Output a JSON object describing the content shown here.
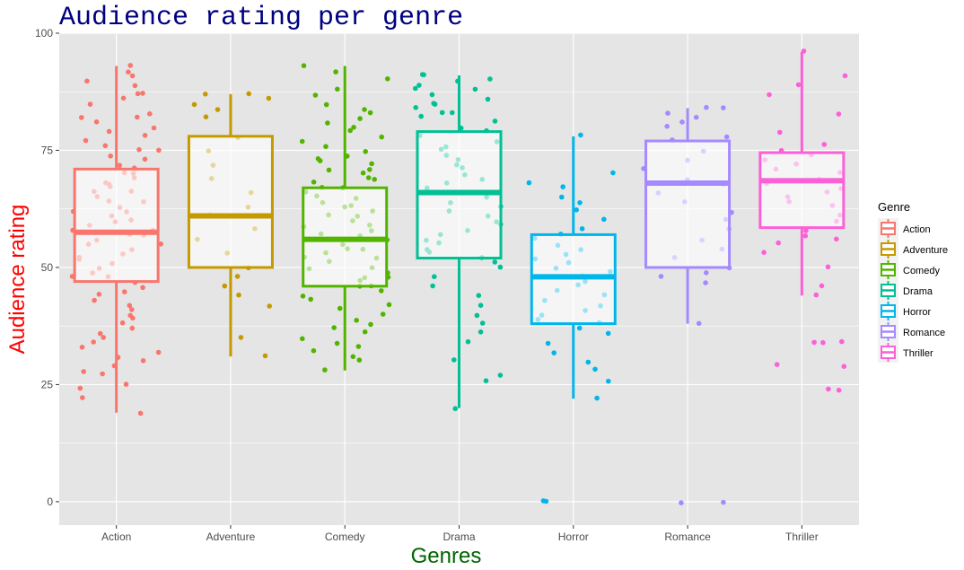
{
  "chart_data": {
    "type": "boxplot",
    "title": "Audience rating per genre",
    "xlabel": "Genres",
    "ylabel": "Audience rating",
    "ylim": [
      -5,
      100
    ],
    "yticks": [
      0,
      25,
      50,
      75,
      100
    ],
    "legend": {
      "title": "Genre",
      "position": "right"
    },
    "colors": {
      "title": "#000080",
      "xlabel": "#006400",
      "ylabel": "#ff0000",
      "panel": "#e5e5e5",
      "grid": "#ffffff"
    },
    "categories": [
      "Action",
      "Adventure",
      "Comedy",
      "Drama",
      "Horror",
      "Romance",
      "Thriller"
    ],
    "series": [
      {
        "name": "Action",
        "color": "#F8766D",
        "q1": 47,
        "median": 57.5,
        "q3": 71,
        "whisker_low": 19,
        "whisker_high": 93,
        "points": [
          93,
          92,
          91,
          90,
          89,
          87,
          87,
          86,
          85,
          83,
          82,
          82,
          81,
          80,
          79,
          78,
          77,
          76,
          75,
          75,
          74,
          73,
          72,
          71,
          70,
          70,
          69,
          68,
          68,
          67,
          66,
          66,
          65,
          64,
          64,
          63,
          62,
          62,
          61,
          60,
          60,
          59,
          58,
          58,
          57,
          57,
          56,
          55,
          55,
          54,
          53,
          52,
          52,
          51,
          50,
          49,
          48,
          48,
          47,
          46,
          45,
          44,
          43,
          42,
          41,
          40,
          39,
          38,
          37,
          36,
          35,
          34,
          33,
          32,
          31,
          30,
          29,
          28,
          27,
          25,
          24,
          22,
          19
        ]
      },
      {
        "name": "Adventure",
        "color": "#C49A00",
        "q1": 50,
        "median": 61,
        "q3": 78,
        "whisker_low": 31,
        "whisker_high": 87,
        "points": [
          87,
          87,
          86,
          85,
          84,
          82,
          78,
          75,
          72,
          69,
          66,
          63,
          61,
          58,
          56,
          53,
          50,
          48,
          46,
          44,
          42,
          35,
          31
        ]
      },
      {
        "name": "Comedy",
        "color": "#53B400",
        "q1": 46,
        "median": 56,
        "q3": 67,
        "whisker_low": 28,
        "whisker_high": 93,
        "points": [
          93,
          92,
          90,
          88,
          87,
          85,
          84,
          83,
          82,
          81,
          80,
          79,
          78,
          77,
          76,
          75,
          74,
          73,
          73,
          72,
          71,
          71,
          70,
          69,
          69,
          68,
          67,
          67,
          66,
          65,
          65,
          64,
          63,
          63,
          62,
          61,
          61,
          60,
          59,
          59,
          58,
          57,
          57,
          56,
          56,
          55,
          54,
          54,
          53,
          52,
          52,
          51,
          50,
          50,
          49,
          48,
          48,
          47,
          46,
          46,
          45,
          44,
          43,
          42,
          41,
          40,
          39,
          38,
          37,
          36,
          35,
          34,
          33,
          32,
          31,
          30,
          28
        ]
      },
      {
        "name": "Drama",
        "color": "#00C094",
        "q1": 52,
        "median": 66,
        "q3": 79,
        "whisker_low": 20,
        "whisker_high": 91,
        "points": [
          91,
          91,
          90,
          90,
          89,
          88,
          88,
          87,
          86,
          85,
          85,
          84,
          83,
          83,
          82,
          81,
          80,
          79,
          78,
          77,
          76,
          75,
          74,
          73,
          72,
          71,
          70,
          69,
          68,
          67,
          66,
          65,
          64,
          63,
          62,
          61,
          60,
          59,
          58,
          57,
          56,
          55,
          54,
          53,
          52,
          51,
          50,
          48,
          46,
          44,
          42,
          40,
          38,
          36,
          34,
          30,
          27,
          26,
          20
        ]
      },
      {
        "name": "Horror",
        "color": "#00B6EB",
        "q1": 38,
        "median": 48,
        "q3": 57,
        "whisker_low": 22,
        "whisker_high": 78,
        "points": [
          78,
          70,
          68,
          67,
          65,
          64,
          62,
          60,
          58,
          57,
          56,
          55,
          54,
          53,
          52,
          51,
          50,
          49,
          48,
          47,
          46,
          45,
          44,
          43,
          42,
          41,
          40,
          39,
          38,
          37,
          36,
          34,
          32,
          30,
          28,
          26,
          22,
          0,
          0
        ]
      },
      {
        "name": "Romance",
        "color": "#A58AFF",
        "q1": 50,
        "median": 68,
        "q3": 77,
        "whisker_low": 38,
        "whisker_high": 84,
        "points": [
          84,
          84,
          83,
          82,
          81,
          80,
          78,
          77,
          75,
          73,
          71,
          69,
          68,
          66,
          64,
          62,
          60,
          58,
          56,
          54,
          52,
          50,
          49,
          48,
          47,
          38,
          0,
          0
        ]
      },
      {
        "name": "Thriller",
        "color": "#FB61D7",
        "q1": 58.5,
        "median": 68.5,
        "q3": 74.5,
        "whisker_low": 44,
        "whisker_high": 96,
        "points": [
          96,
          91,
          89,
          87,
          83,
          79,
          76,
          75,
          74,
          73,
          72,
          71,
          70,
          69,
          68,
          67,
          66,
          65,
          64,
          63,
          61,
          60,
          58,
          57,
          56,
          55,
          53,
          50,
          46,
          44,
          34,
          34,
          34,
          29,
          29,
          24,
          24
        ]
      }
    ]
  }
}
